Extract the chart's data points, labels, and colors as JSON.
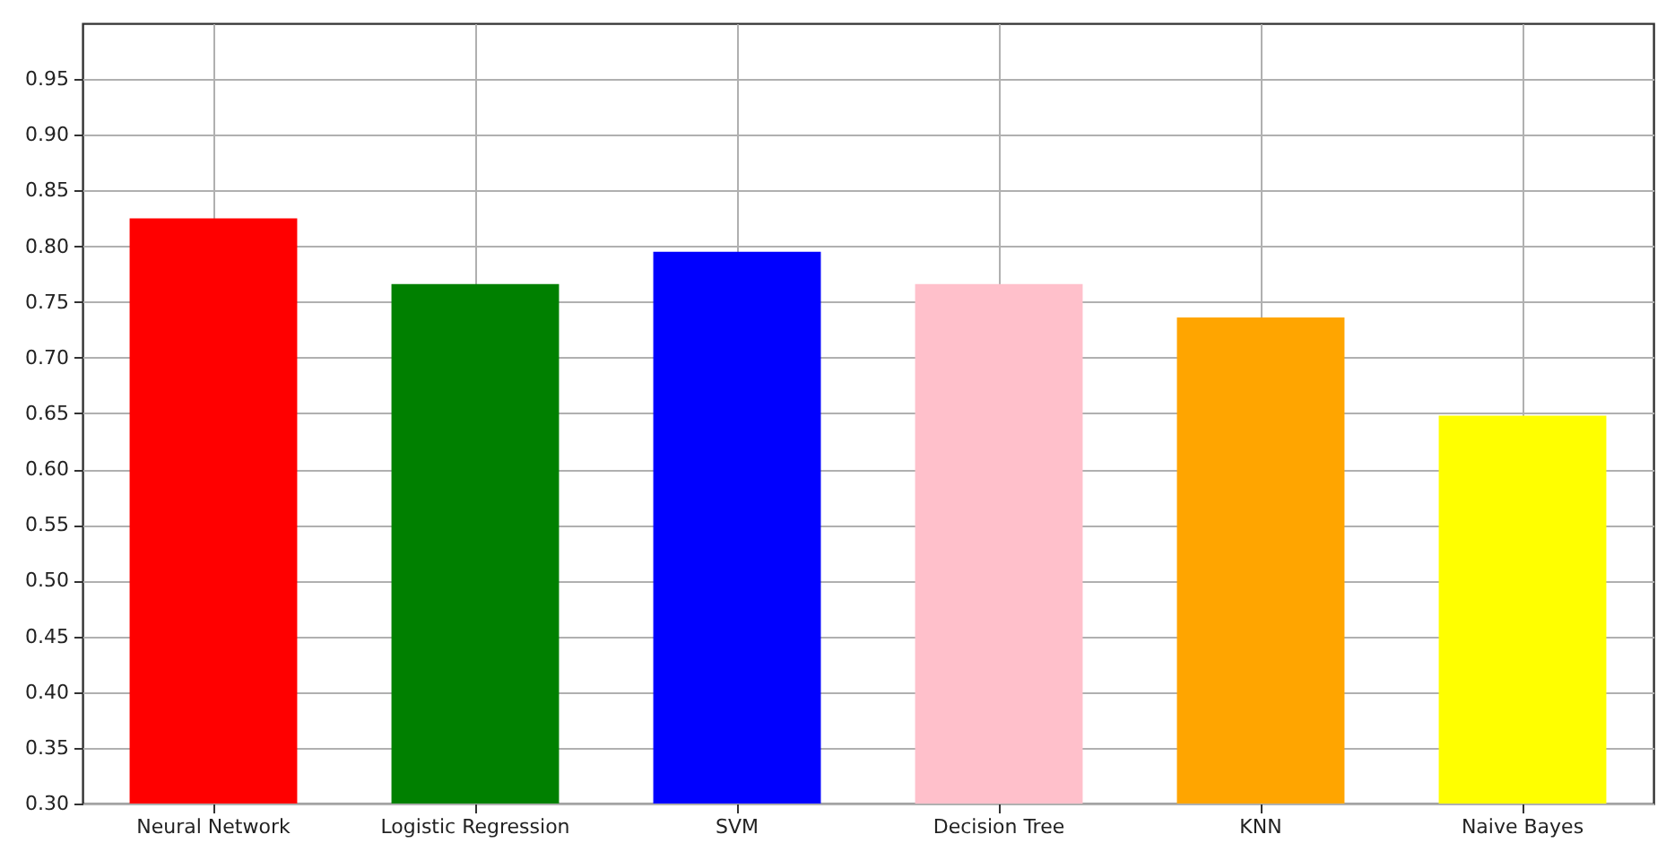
{
  "chart_data": {
    "type": "bar",
    "categories": [
      "Neural Network",
      "Logistic Regression",
      "SVM",
      "Decision Tree",
      "KNN",
      "Naive Bayes"
    ],
    "values": [
      0.825,
      0.766,
      0.795,
      0.766,
      0.736,
      0.648
    ],
    "colors": [
      "#ff0000",
      "#008000",
      "#0000ff",
      "#ffc0cb",
      "#ffa500",
      "#ffff00"
    ],
    "ylim": [
      0.3,
      1.0
    ],
    "yticks": [
      {
        "value": 0.3,
        "label": "0.30"
      },
      0.35,
      {
        "value": 0.4,
        "label": "0.40"
      },
      0.45,
      {
        "value": 0.5,
        "label": "0.50"
      },
      0.55,
      {
        "value": 0.6,
        "label": "0.60"
      },
      0.65,
      {
        "value": 0.7,
        "label": "0.70"
      },
      0.75,
      {
        "value": 0.8,
        "label": "0.80"
      },
      0.85,
      {
        "value": 0.9,
        "label": "0.90"
      },
      0.95
    ],
    "grid": true
  }
}
